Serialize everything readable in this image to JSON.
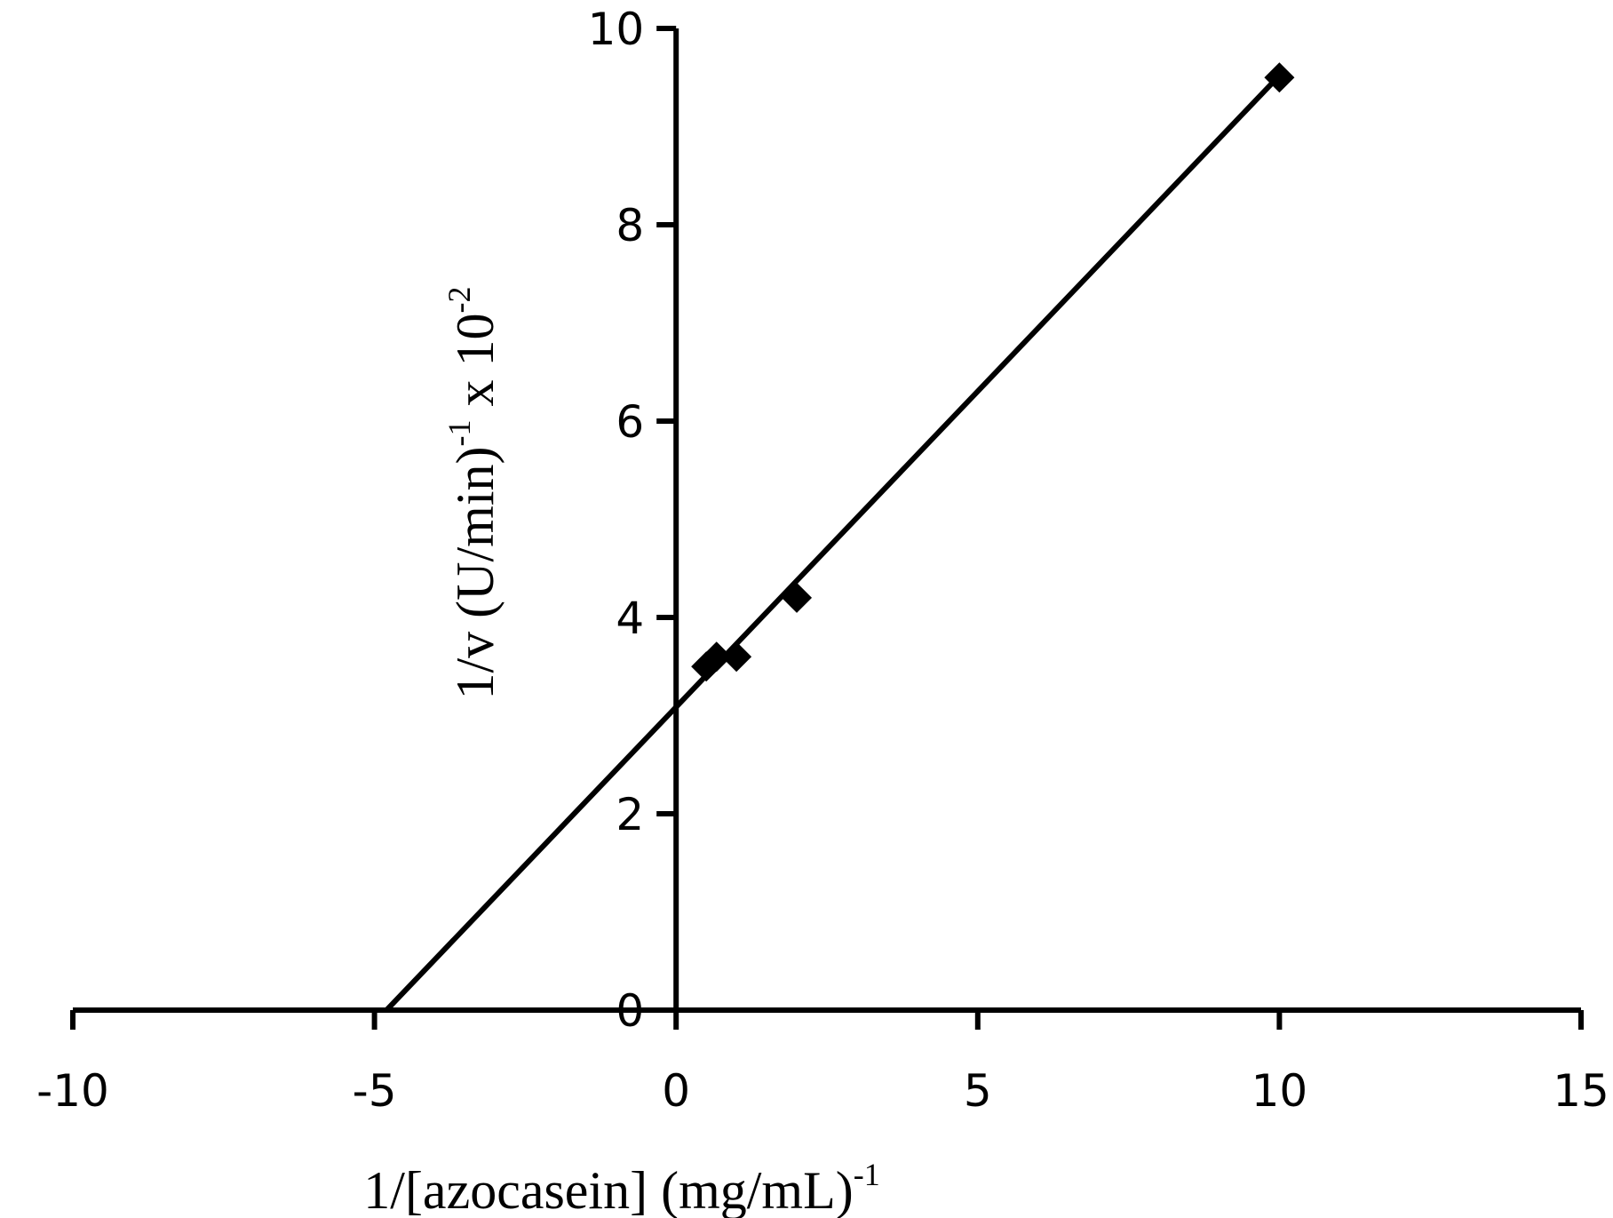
{
  "chart_data": {
    "type": "scatter",
    "title": "",
    "xlabel": {
      "main": "1/[azocasein] (mg/mL)",
      "sup": "-1"
    },
    "ylabel": {
      "part1": "1/v (U/min)",
      "sup1": "-1",
      "part2": " x 10",
      "sup2": "-2"
    },
    "xlim": [
      -10,
      15
    ],
    "ylim": [
      0,
      10
    ],
    "x_ticks": [
      -10,
      -5,
      0,
      5,
      10,
      15
    ],
    "y_ticks": [
      0,
      2,
      4,
      6,
      8,
      10
    ],
    "x_tick_labels": [
      "-10",
      "-5",
      "0",
      "5",
      "10",
      "15"
    ],
    "y_tick_labels": [
      "0",
      "2",
      "4",
      "6",
      "8",
      "10"
    ],
    "grid": false,
    "legend": "none",
    "series": [
      {
        "marker": "diamond",
        "color": "#000000",
        "points": [
          {
            "x": 0.5,
            "y": 3.5
          },
          {
            "x": 0.67,
            "y": 3.6
          },
          {
            "x": 1.0,
            "y": 3.6
          },
          {
            "x": 2.0,
            "y": 4.2
          },
          {
            "x": 10.0,
            "y": 9.5
          }
        ]
      }
    ],
    "trendline": {
      "type": "linear",
      "color": "#000000",
      "from": {
        "x": -4.8,
        "y": 0
      },
      "to": {
        "x": 10.0,
        "y": 9.52
      }
    }
  }
}
